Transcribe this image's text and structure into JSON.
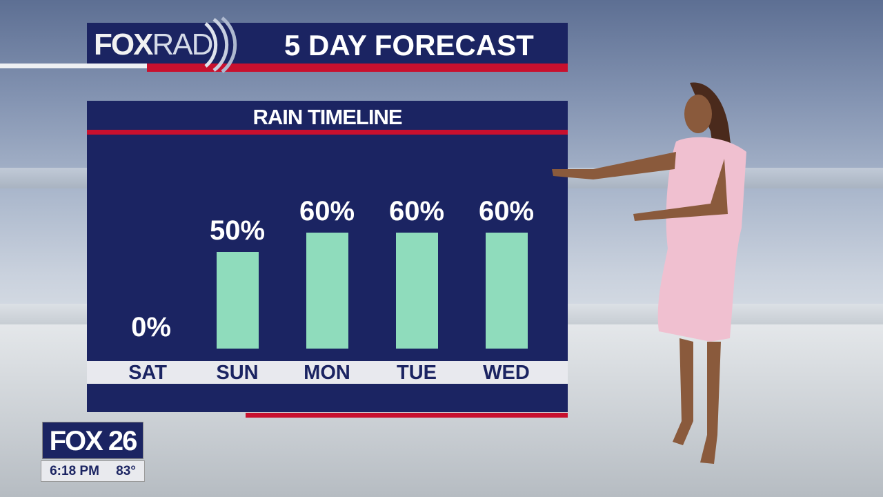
{
  "header": {
    "logo": "FOXRAD",
    "logo_fox": "FOX",
    "logo_rad": "RAD",
    "title": "5 DAY FORECAST"
  },
  "panel": {
    "title": "RAIN TIMELINE"
  },
  "colors": {
    "navy": "#1b2462",
    "red": "#c8102e",
    "bar": "#8fdcbc"
  },
  "chart_data": {
    "type": "bar",
    "title": "RAIN TIMELINE",
    "categories": [
      "SAT",
      "SUN",
      "MON",
      "TUE",
      "WED"
    ],
    "values": [
      0,
      50,
      60,
      60,
      60
    ],
    "labels": [
      "0%",
      "50%",
      "60%",
      "60%",
      "60%"
    ],
    "unit": "%",
    "ylim": [
      0,
      100
    ],
    "grid": false
  },
  "station": {
    "logo": "FOX 26",
    "time": "6:18 PM",
    "temp": "83°"
  }
}
